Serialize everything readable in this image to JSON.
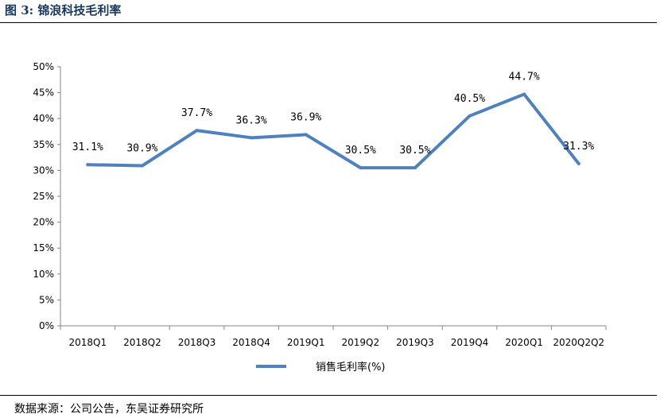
{
  "figure": {
    "title": "图 3:  锦浪科技毛利率",
    "source": "数据来源：公司公告，东吴证券研究所"
  },
  "chart_data": {
    "type": "line",
    "title": "",
    "xlabel": "",
    "ylabel": "",
    "categories": [
      "2018Q1",
      "2018Q2",
      "2018Q3",
      "2018Q4",
      "2019Q1",
      "2019Q2",
      "2019Q3",
      "2019Q4",
      "2020Q1",
      "2020Q2Q2"
    ],
    "series": [
      {
        "name": "销售毛利率(%)",
        "values": [
          31.1,
          30.9,
          37.7,
          36.3,
          36.9,
          30.5,
          30.5,
          40.5,
          44.7,
          31.3
        ],
        "labels": [
          "31.1%",
          "30.9%",
          "37.7%",
          "36.3%",
          "36.9%",
          "30.5%",
          "30.5%",
          "40.5%",
          "44.7%",
          "31.3%"
        ],
        "color": "#4f81bd"
      }
    ],
    "ylim": [
      0,
      50
    ],
    "yticks": [
      "0%",
      "5%",
      "10%",
      "15%",
      "20%",
      "25%",
      "30%",
      "35%",
      "40%",
      "45%",
      "50%"
    ],
    "grid": false,
    "legend": "bottom-center"
  }
}
